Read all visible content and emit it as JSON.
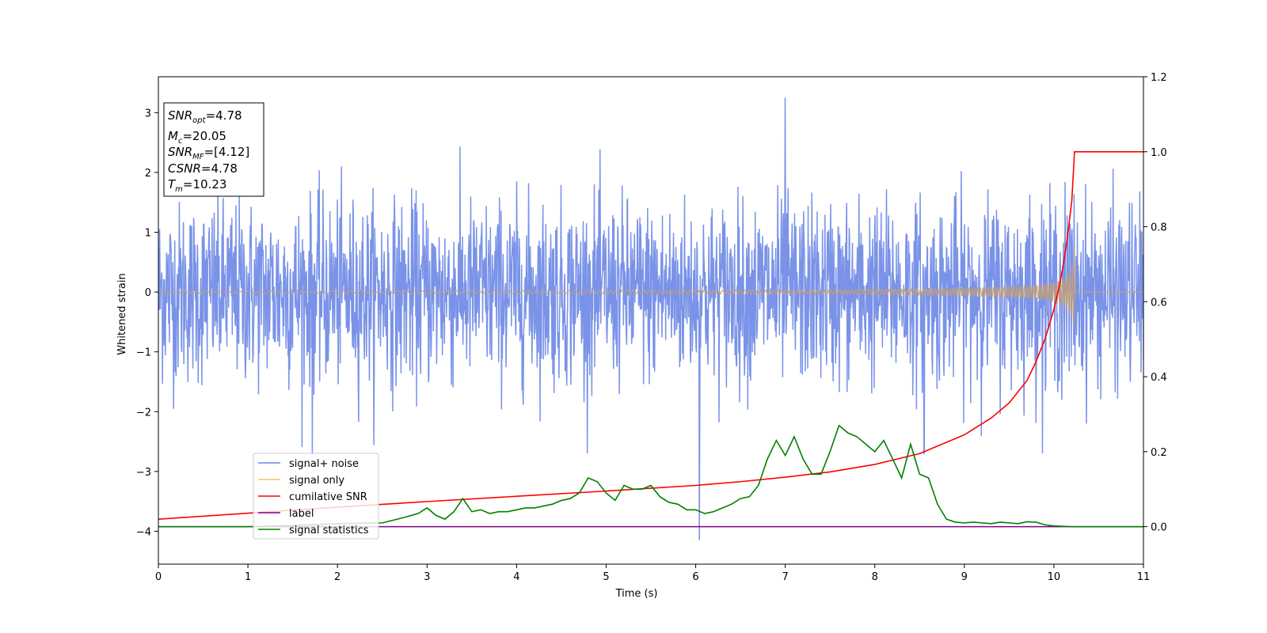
{
  "chart_data": {
    "type": "line",
    "xlabel": "Time (s)",
    "ylabel_left": "Whitened strain",
    "ylabel_right": "",
    "xlim": [
      0,
      11
    ],
    "ylim_left": [
      -4.55,
      3.6
    ],
    "ylim_right": [
      -0.1,
      1.2
    ],
    "x_ticks": [
      "0",
      "1",
      "2",
      "3",
      "4",
      "5",
      "6",
      "7",
      "8",
      "9",
      "10",
      "11"
    ],
    "y_ticks_left": [
      "3",
      "2",
      "1",
      "0",
      "−1",
      "−2",
      "−3",
      "−4"
    ],
    "y_ticks_right": [
      "1.2",
      "1.0",
      "0.8",
      "0.6",
      "0.4",
      "0.2",
      "0.0"
    ],
    "legend_position": "lower-left",
    "annotation": {
      "snr_opt": {
        "base": "SNR",
        "sub": "opt",
        "value": "=4.78"
      },
      "mc": {
        "base": "M",
        "sub": "c",
        "value": "=20.05"
      },
      "snr_mf": {
        "base": "SNR",
        "sub": "MF",
        "value": "=[4.12]"
      },
      "csnr": {
        "base": "CSNR",
        "value": "=4.78"
      },
      "tm": {
        "base": "T",
        "sub": "m",
        "value": "=10.23"
      }
    },
    "series": [
      {
        "name": "signal+ noise",
        "color": "#6b87e6",
        "axis": "left",
        "description_values": {
          "noise_std": 0.75,
          "min": -4.15,
          "max": 3.25,
          "spike_times": [
            1.72,
            6.04,
            7.0,
            8.55
          ]
        }
      },
      {
        "name": "signal only",
        "color": "#f5c26b",
        "axis": "left",
        "chirp": {
          "merger_time": 10.23,
          "peak_amplitude": 0.75,
          "start_freq_hz": 8,
          "end_freq_hz": 60
        }
      },
      {
        "name": "cumilative SNR",
        "color": "#ff0000",
        "axis": "right",
        "x": [
          0,
          1,
          2,
          3,
          4,
          5,
          6,
          6.5,
          7,
          7.5,
          8,
          8.5,
          9,
          9.3,
          9.5,
          9.7,
          9.8,
          9.9,
          10.0,
          10.05,
          10.1,
          10.15,
          10.2,
          10.23,
          10.24,
          11
        ],
        "y": [
          0.02,
          0.036,
          0.052,
          0.067,
          0.081,
          0.095,
          0.11,
          0.12,
          0.132,
          0.146,
          0.166,
          0.195,
          0.245,
          0.29,
          0.33,
          0.39,
          0.44,
          0.5,
          0.58,
          0.63,
          0.69,
          0.77,
          0.87,
          1.0,
          1.0,
          1.0
        ]
      },
      {
        "name": "label",
        "color": "#800080",
        "axis": "right",
        "x": [
          0,
          11
        ],
        "y": [
          0.0,
          0.0
        ]
      },
      {
        "name": "signal statistics",
        "color": "#008000",
        "axis": "right",
        "x": [
          0,
          1.0,
          1.5,
          2.0,
          2.5,
          2.75,
          2.9,
          3.0,
          3.1,
          3.2,
          3.3,
          3.4,
          3.5,
          3.6,
          3.7,
          3.8,
          3.9,
          4.0,
          4.1,
          4.2,
          4.3,
          4.4,
          4.5,
          4.6,
          4.7,
          4.8,
          4.9,
          5.0,
          5.1,
          5.2,
          5.3,
          5.4,
          5.5,
          5.6,
          5.7,
          5.8,
          5.9,
          6.0,
          6.1,
          6.2,
          6.3,
          6.4,
          6.5,
          6.6,
          6.7,
          6.8,
          6.9,
          7.0,
          7.1,
          7.2,
          7.3,
          7.4,
          7.5,
          7.6,
          7.7,
          7.8,
          7.9,
          8.0,
          8.1,
          8.2,
          8.3,
          8.4,
          8.5,
          8.6,
          8.7,
          8.8,
          8.9,
          9.0,
          9.1,
          9.2,
          9.3,
          9.4,
          9.5,
          9.6,
          9.7,
          9.8,
          9.9,
          10.0,
          10.2,
          10.5,
          11
        ],
        "y": [
          0.0,
          0.0,
          0.003,
          0.008,
          0.01,
          0.025,
          0.035,
          0.05,
          0.03,
          0.02,
          0.04,
          0.075,
          0.04,
          0.045,
          0.035,
          0.04,
          0.04,
          0.045,
          0.05,
          0.05,
          0.055,
          0.06,
          0.07,
          0.075,
          0.09,
          0.13,
          0.12,
          0.09,
          0.07,
          0.11,
          0.1,
          0.1,
          0.11,
          0.08,
          0.065,
          0.06,
          0.045,
          0.045,
          0.035,
          0.04,
          0.05,
          0.06,
          0.075,
          0.08,
          0.11,
          0.18,
          0.23,
          0.19,
          0.24,
          0.18,
          0.14,
          0.14,
          0.2,
          0.27,
          0.25,
          0.24,
          0.22,
          0.2,
          0.23,
          0.18,
          0.13,
          0.22,
          0.14,
          0.13,
          0.06,
          0.02,
          0.012,
          0.01,
          0.012,
          0.01,
          0.008,
          0.012,
          0.01,
          0.008,
          0.013,
          0.012,
          0.005,
          0.002,
          0.0,
          0.0,
          0.0
        ]
      }
    ]
  }
}
